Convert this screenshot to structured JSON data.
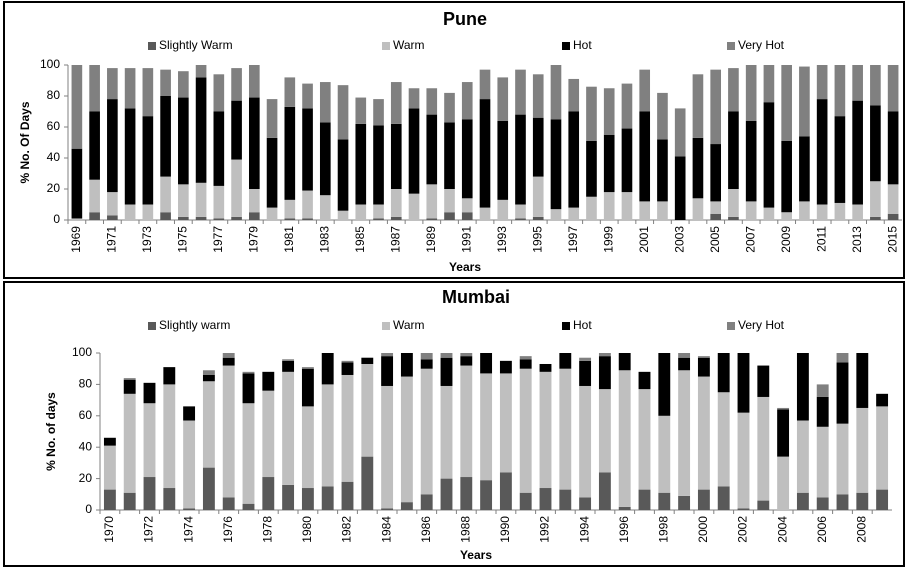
{
  "chart_data": [
    {
      "type": "bar",
      "stacked": true,
      "title": "Pune",
      "xlabel": "Years",
      "ylabel": "% No. Of Days",
      "legend": "top",
      "categories": [
        "1969",
        null,
        "1971",
        null,
        "1973",
        null,
        "1975",
        null,
        "1977",
        null,
        "1979",
        null,
        "1981",
        null,
        "1983",
        null,
        "1985",
        null,
        "1987",
        null,
        "1989",
        null,
        "1991",
        null,
        "1993",
        null,
        "1995",
        null,
        "1997",
        null,
        "1999",
        null,
        "2001",
        null,
        "2003",
        null,
        "2005",
        null,
        "2007",
        null,
        "2009",
        null,
        "2011",
        null,
        "2013",
        null,
        "2015"
      ],
      "series": [
        {
          "name": "Slightly Warm",
          "color": "#595959",
          "values": [
            0,
            5,
            3,
            0,
            0,
            5,
            2,
            2,
            1,
            2,
            5,
            0,
            1,
            1,
            0,
            0,
            0,
            1,
            2,
            0,
            1,
            5,
            5,
            0,
            0,
            1,
            2,
            0,
            0,
            0,
            0,
            0,
            0,
            0,
            0,
            0,
            4,
            2,
            0,
            0,
            0,
            0,
            0,
            0,
            0,
            2,
            4
          ]
        },
        {
          "name": "Warm",
          "color": "#bfbfbf",
          "values": [
            1,
            21,
            15,
            10,
            10,
            23,
            21,
            22,
            21,
            37,
            15,
            8,
            12,
            18,
            16,
            6,
            10,
            9,
            18,
            17,
            22,
            15,
            9,
            8,
            13,
            9,
            26,
            7,
            8,
            15,
            18,
            18,
            12,
            12,
            0,
            14,
            8,
            18,
            12,
            8,
            5,
            12,
            10,
            11,
            10,
            23,
            19
          ]
        },
        {
          "name": "Hot",
          "color": "#000000",
          "values": [
            45,
            44,
            60,
            62,
            57,
            52,
            56,
            68,
            48,
            38,
            59,
            45,
            60,
            53,
            47,
            46,
            52,
            51,
            42,
            55,
            45,
            43,
            51,
            70,
            51,
            58,
            38,
            58,
            62,
            36,
            37,
            41,
            58,
            40,
            41,
            39,
            37,
            50,
            52,
            68,
            46,
            42,
            68,
            56,
            67,
            49,
            47
          ]
        },
        {
          "name": "Very Hot",
          "color": "#808080",
          "values": [
            54,
            30,
            20,
            26,
            31,
            17,
            17,
            8,
            24,
            21,
            21,
            25,
            19,
            16,
            26,
            35,
            17,
            17,
            27,
            13,
            17,
            19,
            24,
            19,
            28,
            29,
            28,
            35,
            21,
            35,
            30,
            29,
            27,
            30,
            31,
            41,
            48,
            28,
            36,
            24,
            49,
            45,
            22,
            33,
            23,
            26,
            30
          ]
        }
      ],
      "ylim": [
        0,
        100
      ],
      "yticks": [
        0,
        20,
        40,
        60,
        80,
        100
      ]
    },
    {
      "type": "bar",
      "stacked": true,
      "title": "Mumbai",
      "xlabel": "Years",
      "ylabel": "% No. of days",
      "legend": "top",
      "categories": [
        "1970",
        null,
        "1972",
        null,
        "1974",
        null,
        "1976",
        null,
        "1978",
        null,
        "1980",
        null,
        "1982",
        null,
        "1984",
        null,
        "1986",
        null,
        "1988",
        null,
        "1990",
        null,
        "1992",
        null,
        "1994",
        null,
        "1996",
        null,
        "1998",
        null,
        "2000",
        null,
        "2002",
        null,
        "2004",
        null,
        "2006",
        null,
        "2008",
        null
      ],
      "series": [
        {
          "name": "Slightly warm",
          "color": "#595959",
          "values": [
            13,
            11,
            21,
            14,
            1,
            27,
            8,
            4,
            21,
            16,
            14,
            15,
            18,
            34,
            1,
            5,
            10,
            20,
            21,
            19,
            24,
            11,
            14,
            13,
            8,
            24,
            2,
            13,
            11,
            9,
            13,
            15,
            1,
            6,
            0,
            11,
            8,
            10,
            11,
            13
          ]
        },
        {
          "name": "Warm",
          "color": "#bfbfbf",
          "values": [
            28,
            63,
            47,
            66,
            56,
            55,
            84,
            64,
            55,
            72,
            52,
            65,
            68,
            59,
            78,
            80,
            80,
            59,
            71,
            68,
            63,
            79,
            74,
            77,
            71,
            53,
            87,
            64,
            49,
            80,
            72,
            60,
            61,
            66,
            34,
            46,
            45,
            45,
            54,
            53
          ]
        },
        {
          "name": "Hot",
          "color": "#000000",
          "values": [
            5,
            9,
            13,
            11,
            9,
            4,
            5,
            19,
            12,
            7,
            24,
            20,
            8,
            4,
            19,
            15,
            6,
            18,
            6,
            13,
            8,
            6,
            5,
            10,
            16,
            21,
            11,
            11,
            40,
            8,
            12,
            25,
            38,
            20,
            30,
            43,
            19,
            39,
            35,
            8
          ]
        },
        {
          "name": "Very Hot",
          "color": "#808080",
          "values": [
            0,
            1,
            0,
            0,
            0,
            3,
            3,
            1,
            0,
            1,
            1,
            0,
            1,
            0,
            2,
            0,
            4,
            3,
            2,
            0,
            0,
            2,
            0,
            0,
            2,
            2,
            0,
            0,
            0,
            3,
            1,
            0,
            0,
            0,
            1,
            0,
            8,
            6,
            0,
            0
          ]
        }
      ],
      "ylim": [
        0,
        100
      ],
      "yticks": [
        0,
        20,
        40,
        60,
        80,
        100
      ]
    }
  ]
}
